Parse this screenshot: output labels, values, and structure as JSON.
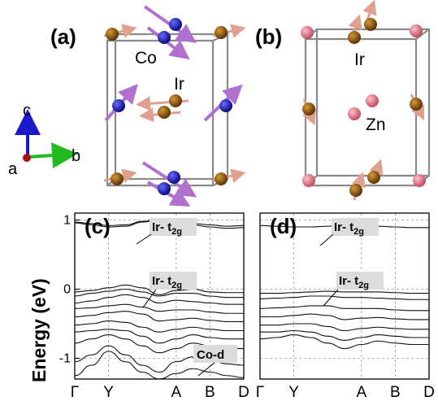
{
  "panels": {
    "a": {
      "label": "(a)",
      "atoms": [
        "Co",
        "Ir"
      ],
      "axes": {
        "c": "c",
        "a": "a",
        "b": "b"
      }
    },
    "b": {
      "label": "(b)",
      "atoms": [
        "Ir",
        "Zn"
      ]
    },
    "c": {
      "label": "(c)",
      "annotations": [
        {
          "main": "Ir- t",
          "sub": "2g"
        },
        {
          "main": "Ir- t",
          "sub": "2g"
        },
        {
          "main": "Co-d",
          "sub": ""
        }
      ]
    },
    "d": {
      "label": "(d)",
      "annotations": [
        {
          "main": "Ir- t",
          "sub": "2g"
        },
        {
          "main": "Ir- t",
          "sub": "2g"
        }
      ]
    }
  },
  "y_axis_label": "Energy (eV)",
  "colors": {
    "Co": "#1a1aa8",
    "Ir": "#8b5a0a",
    "Zn": "#e07a8a",
    "moment_Co": "#b070d0",
    "moment_Ir": "#e0a090",
    "axis_c": "#1a1acc",
    "axis_b": "#22bb22",
    "axis_a": "#aa1111"
  },
  "chart_data": [
    {
      "type": "line",
      "panel": "c",
      "title": "",
      "xlabel": "",
      "ylabel": "Energy (eV)",
      "k_points": [
        "Γ",
        "Y",
        "A",
        "B",
        "D"
      ],
      "k_positions": [
        0,
        1,
        3,
        4,
        5
      ],
      "xlim": [
        0,
        5
      ],
      "ylim": [
        -1.3,
        1.1
      ],
      "yticks": [
        -1,
        0,
        1
      ],
      "grid": true,
      "series": [
        {
          "x": [
            0,
            0.5,
            1,
            1.5,
            2,
            2.5,
            3,
            3.5,
            4,
            4.5,
            5
          ],
          "y": [
            0.97,
            0.95,
            0.92,
            0.93,
            0.98,
            1.02,
            0.98,
            0.95,
            0.93,
            0.91,
            0.92
          ]
        },
        {
          "x": [
            0,
            0.5,
            1,
            1.5,
            2,
            2.5,
            3,
            3.5,
            4,
            4.5,
            5
          ],
          "y": [
            0.96,
            0.93,
            0.9,
            0.91,
            0.97,
            1.0,
            0.97,
            0.93,
            0.9,
            0.88,
            0.89
          ]
        },
        {
          "x": [
            0,
            0.5,
            1,
            1.5,
            2,
            2.5,
            3,
            3.5,
            4,
            4.5,
            5
          ],
          "y": [
            -0.04,
            -0.02,
            0.02,
            0.06,
            0.02,
            -0.08,
            -0.02,
            0.0,
            -0.04,
            -0.05,
            -0.05
          ]
        },
        {
          "x": [
            0,
            0.5,
            1,
            1.5,
            2,
            2.5,
            3,
            3.5,
            4,
            4.5,
            5
          ],
          "y": [
            -0.1,
            -0.06,
            -0.03,
            0.0,
            -0.04,
            -0.1,
            -0.06,
            -0.06,
            -0.1,
            -0.12,
            -0.12
          ]
        },
        {
          "x": [
            0,
            0.5,
            1,
            1.5,
            2,
            2.5,
            3,
            3.5,
            4,
            4.5,
            5
          ],
          "y": [
            -0.2,
            -0.17,
            -0.12,
            -0.08,
            -0.12,
            -0.2,
            -0.16,
            -0.18,
            -0.2,
            -0.22,
            -0.22
          ]
        },
        {
          "x": [
            0,
            0.5,
            1,
            1.5,
            2,
            2.5,
            3,
            3.5,
            4,
            4.5,
            5
          ],
          "y": [
            -0.28,
            -0.27,
            -0.24,
            -0.22,
            -0.26,
            -0.32,
            -0.3,
            -0.3,
            -0.33,
            -0.35,
            -0.35
          ]
        },
        {
          "x": [
            0,
            0.5,
            1,
            1.5,
            2,
            2.5,
            3,
            3.5,
            4,
            4.5,
            5
          ],
          "y": [
            -0.4,
            -0.38,
            -0.34,
            -0.32,
            -0.36,
            -0.46,
            -0.44,
            -0.42,
            -0.45,
            -0.47,
            -0.47
          ]
        },
        {
          "x": [
            0,
            0.5,
            1,
            1.5,
            2,
            2.5,
            3,
            3.5,
            4,
            4.5,
            5
          ],
          "y": [
            -0.52,
            -0.5,
            -0.46,
            -0.48,
            -0.55,
            -0.62,
            -0.58,
            -0.55,
            -0.58,
            -0.6,
            -0.6
          ]
        },
        {
          "x": [
            0,
            0.5,
            1,
            1.5,
            2,
            2.5,
            3,
            3.5,
            4,
            4.5,
            5
          ],
          "y": [
            -0.62,
            -0.6,
            -0.58,
            -0.6,
            -0.68,
            -0.78,
            -0.72,
            -0.66,
            -0.7,
            -0.72,
            -0.72
          ]
        },
        {
          "x": [
            0,
            0.5,
            1,
            1.5,
            2,
            2.5,
            3,
            3.5,
            4,
            4.5,
            5
          ],
          "y": [
            -0.78,
            -0.72,
            -0.66,
            -0.72,
            -0.82,
            -0.92,
            -0.86,
            -0.78,
            -0.82,
            -0.86,
            -0.86
          ]
        },
        {
          "x": [
            0,
            0.5,
            1,
            1.5,
            2,
            2.5,
            3,
            3.5,
            4,
            4.5,
            5
          ],
          "y": [
            -1.05,
            -0.95,
            -0.82,
            -0.95,
            -1.1,
            -1.2,
            -1.05,
            -0.98,
            -1.02,
            -1.08,
            -1.1
          ]
        },
        {
          "x": [
            0,
            0.5,
            1,
            1.5,
            2,
            2.5,
            3,
            3.5,
            4,
            4.5,
            5
          ],
          "y": [
            -1.25,
            -1.1,
            -0.9,
            -1.05,
            -1.2,
            -1.3,
            -1.22,
            -1.15,
            -1.2,
            -1.25,
            -1.28
          ]
        }
      ]
    },
    {
      "type": "line",
      "panel": "d",
      "title": "",
      "xlabel": "",
      "ylabel": "",
      "k_points": [
        "Γ",
        "Y",
        "A",
        "B",
        "D"
      ],
      "k_positions": [
        0,
        1,
        3,
        4,
        5
      ],
      "xlim": [
        0,
        5
      ],
      "ylim": [
        -1.3,
        1.1
      ],
      "grid": true,
      "series": [
        {
          "x": [
            0,
            0.5,
            1,
            1.5,
            2,
            2.5,
            3,
            3.5,
            4,
            4.5,
            5
          ],
          "y": [
            0.92,
            0.91,
            0.9,
            0.9,
            0.91,
            0.92,
            0.92,
            0.91,
            0.9,
            0.89,
            0.89
          ]
        },
        {
          "x": [
            0,
            0.5,
            1,
            1.5,
            2,
            2.5,
            3,
            3.5,
            4,
            4.5,
            5
          ],
          "y": [
            -0.06,
            -0.06,
            -0.05,
            -0.04,
            -0.03,
            -0.04,
            -0.04,
            -0.04,
            -0.05,
            -0.06,
            -0.06
          ]
        },
        {
          "x": [
            0,
            0.5,
            1,
            1.5,
            2,
            2.5,
            3,
            3.5,
            4,
            4.5,
            5
          ],
          "y": [
            -0.14,
            -0.13,
            -0.12,
            -0.1,
            -0.1,
            -0.12,
            -0.12,
            -0.13,
            -0.14,
            -0.15,
            -0.15
          ]
        },
        {
          "x": [
            0,
            0.5,
            1,
            1.5,
            2,
            2.5,
            3,
            3.5,
            4,
            4.5,
            5
          ],
          "y": [
            -0.28,
            -0.27,
            -0.26,
            -0.24,
            -0.24,
            -0.28,
            -0.28,
            -0.28,
            -0.3,
            -0.31,
            -0.31
          ]
        },
        {
          "x": [
            0,
            0.5,
            1,
            1.5,
            2,
            2.5,
            3,
            3.5,
            4,
            4.5,
            5
          ],
          "y": [
            -0.4,
            -0.4,
            -0.38,
            -0.36,
            -0.38,
            -0.44,
            -0.42,
            -0.41,
            -0.43,
            -0.44,
            -0.44
          ]
        },
        {
          "x": [
            0,
            0.5,
            1,
            1.5,
            2,
            2.5,
            3,
            3.5,
            4,
            4.5,
            5
          ],
          "y": [
            -0.52,
            -0.52,
            -0.5,
            -0.5,
            -0.54,
            -0.6,
            -0.57,
            -0.55,
            -0.57,
            -0.58,
            -0.58
          ]
        },
        {
          "x": [
            0,
            0.5,
            1,
            1.5,
            2,
            2.5,
            3,
            3.5,
            4,
            4.5,
            5
          ],
          "y": [
            -0.62,
            -0.62,
            -0.6,
            -0.62,
            -0.68,
            -0.74,
            -0.7,
            -0.66,
            -0.68,
            -0.7,
            -0.7
          ]
        },
        {
          "x": [
            0,
            0.5,
            1,
            1.5,
            2,
            2.5,
            3,
            3.5,
            4,
            4.5,
            5
          ],
          "y": [
            -0.72,
            -0.7,
            -0.66,
            -0.7,
            -0.78,
            -0.86,
            -0.8,
            -0.75,
            -0.78,
            -0.8,
            -0.8
          ]
        }
      ]
    }
  ]
}
